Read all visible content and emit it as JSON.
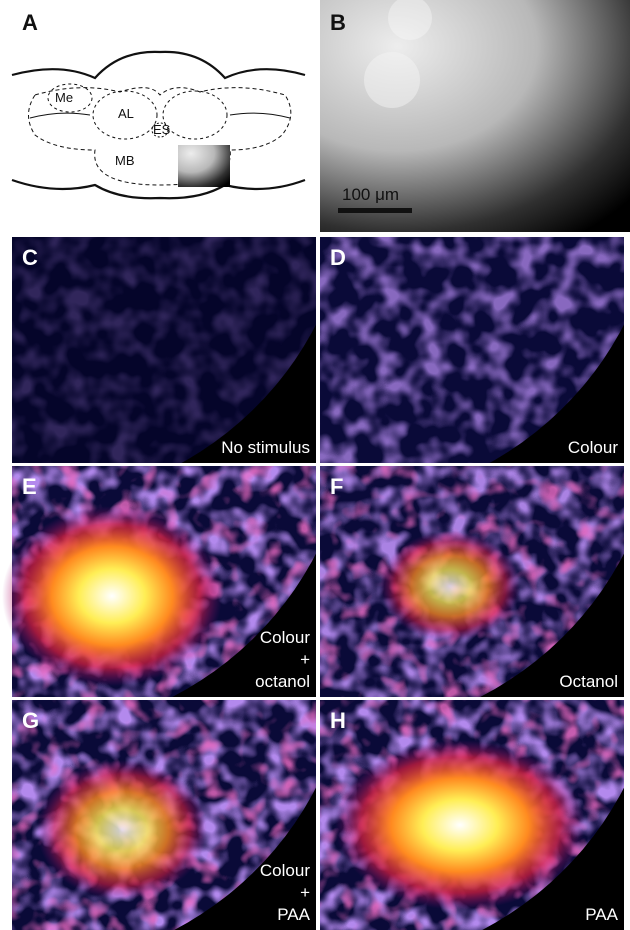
{
  "panels": [
    {
      "letter": "A",
      "diagram_labels": [
        "Me",
        "AL",
        "ES",
        "MB"
      ]
    },
    {
      "letter": "B",
      "scale_bar": "100 μm"
    },
    {
      "letter": "C",
      "label": [
        "No stimulus"
      ]
    },
    {
      "letter": "D",
      "label": [
        "Colour"
      ]
    },
    {
      "letter": "E",
      "label": [
        "Colour",
        "+",
        "octanol"
      ]
    },
    {
      "letter": "F",
      "label": [
        "Octanol"
      ]
    },
    {
      "letter": "G",
      "label": [
        "Colour",
        "+",
        "PAA"
      ]
    },
    {
      "letter": "H",
      "label": [
        "PAA"
      ]
    }
  ]
}
